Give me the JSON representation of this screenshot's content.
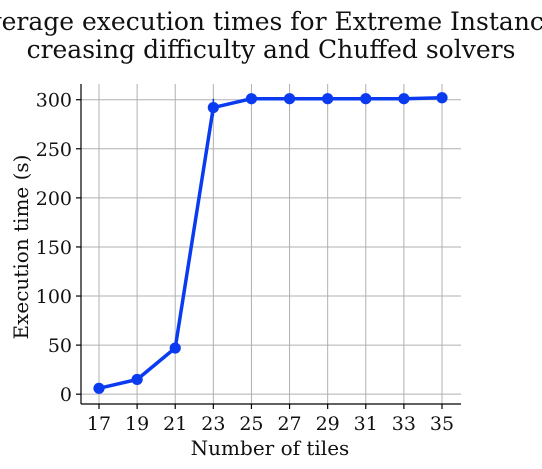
{
  "chart_data": {
    "type": "line",
    "title_lines": [
      "Average execution times for Extreme Instances",
      "creasing difficulty and Chuffed solvers"
    ],
    "xlabel": "Number of tiles",
    "ylabel": "Execution time (s)",
    "categories": [
      17,
      19,
      21,
      23,
      25,
      27,
      29,
      31,
      33,
      35
    ],
    "x_tick_labels": [
      "17",
      "19",
      "21",
      "23",
      "25",
      "27",
      "29",
      "31",
      "33",
      "35"
    ],
    "y_ticks": [
      0,
      50,
      100,
      150,
      200,
      250,
      300
    ],
    "y_tick_labels": [
      "0",
      "50",
      "100",
      "150",
      "200",
      "250",
      "300"
    ],
    "ylim": [
      -10,
      316
    ],
    "grid": true,
    "series": [
      {
        "color": "#0a3bf0",
        "values": [
          6,
          15,
          47,
          292,
          301,
          301,
          301,
          301,
          301,
          302
        ],
        "error_low": [
          6,
          15,
          45,
          283,
          301,
          301,
          301,
          301,
          301,
          302
        ],
        "error_high": [
          6,
          15,
          49,
          301,
          301,
          301,
          301,
          301,
          301,
          302
        ]
      }
    ]
  }
}
